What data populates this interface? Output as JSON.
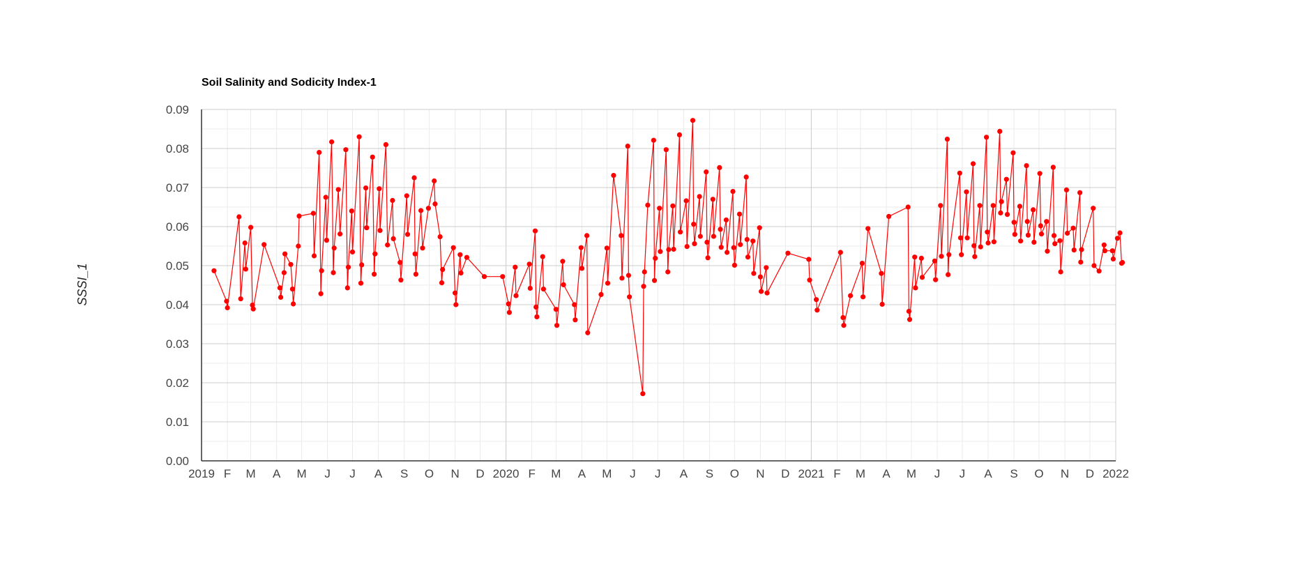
{
  "chart_data": {
    "type": "line",
    "title": "Soil Salinity and Sodicity Index-1",
    "xlabel": "",
    "ylabel": "SSSI_1",
    "ylim": [
      0,
      0.09
    ],
    "xlim": [
      "2019-01-01",
      "2022-01-01"
    ],
    "grid": true,
    "legend": "none",
    "colors": {
      "series": "#ff0000",
      "major_grid": "#cccccc",
      "minor_grid": "#ebebeb",
      "axis": "#333333"
    },
    "y_ticks": [
      "0.00",
      "0.01",
      "0.02",
      "0.03",
      "0.04",
      "0.05",
      "0.06",
      "0.07",
      "0.08",
      "0.09"
    ],
    "x_ticks": [
      {
        "date": "2019-01-01",
        "label": "2019"
      },
      {
        "date": "2019-02-01",
        "label": "F"
      },
      {
        "date": "2019-03-01",
        "label": "M"
      },
      {
        "date": "2019-04-01",
        "label": "A"
      },
      {
        "date": "2019-05-01",
        "label": "M"
      },
      {
        "date": "2019-06-01",
        "label": "J"
      },
      {
        "date": "2019-07-01",
        "label": "J"
      },
      {
        "date": "2019-08-01",
        "label": "A"
      },
      {
        "date": "2019-09-01",
        "label": "S"
      },
      {
        "date": "2019-10-01",
        "label": "O"
      },
      {
        "date": "2019-11-01",
        "label": "N"
      },
      {
        "date": "2019-12-01",
        "label": "D"
      },
      {
        "date": "2020-01-01",
        "label": "2020"
      },
      {
        "date": "2020-02-01",
        "label": "F"
      },
      {
        "date": "2020-03-01",
        "label": "M"
      },
      {
        "date": "2020-04-01",
        "label": "A"
      },
      {
        "date": "2020-05-01",
        "label": "M"
      },
      {
        "date": "2020-06-01",
        "label": "J"
      },
      {
        "date": "2020-07-01",
        "label": "J"
      },
      {
        "date": "2020-08-01",
        "label": "A"
      },
      {
        "date": "2020-09-01",
        "label": "S"
      },
      {
        "date": "2020-10-01",
        "label": "O"
      },
      {
        "date": "2020-11-01",
        "label": "N"
      },
      {
        "date": "2020-12-01",
        "label": "D"
      },
      {
        "date": "2021-01-01",
        "label": "2021"
      },
      {
        "date": "2021-02-01",
        "label": "F"
      },
      {
        "date": "2021-03-01",
        "label": "M"
      },
      {
        "date": "2021-04-01",
        "label": "A"
      },
      {
        "date": "2021-05-01",
        "label": "M"
      },
      {
        "date": "2021-06-01",
        "label": "J"
      },
      {
        "date": "2021-07-01",
        "label": "J"
      },
      {
        "date": "2021-08-01",
        "label": "A"
      },
      {
        "date": "2021-09-01",
        "label": "S"
      },
      {
        "date": "2021-10-01",
        "label": "O"
      },
      {
        "date": "2021-11-01",
        "label": "N"
      },
      {
        "date": "2021-12-01",
        "label": "D"
      },
      {
        "date": "2022-01-01",
        "label": "2022"
      }
    ],
    "series": [
      {
        "points": [
          [
            "2019-01-16",
            0.0487
          ],
          [
            "2019-01-31",
            0.0409
          ],
          [
            "2019-02-01",
            0.0392
          ],
          [
            "2019-02-15",
            0.0625
          ],
          [
            "2019-02-17",
            0.0415
          ],
          [
            "2019-02-22",
            0.0558
          ],
          [
            "2019-02-23",
            0.0491
          ],
          [
            "2019-03-01",
            0.0598
          ],
          [
            "2019-03-03",
            0.0399
          ],
          [
            "2019-03-04",
            0.0389
          ],
          [
            "2019-03-17",
            0.0554
          ],
          [
            "2019-04-05",
            0.0443
          ],
          [
            "2019-04-06",
            0.0419
          ],
          [
            "2019-04-10",
            0.0482
          ],
          [
            "2019-04-11",
            0.053
          ],
          [
            "2019-04-18",
            0.0503
          ],
          [
            "2019-04-20",
            0.044
          ],
          [
            "2019-04-21",
            0.0402
          ],
          [
            "2019-04-27",
            0.055
          ],
          [
            "2019-04-28",
            0.0627
          ],
          [
            "2019-05-15",
            0.0634
          ],
          [
            "2019-05-16",
            0.0525
          ],
          [
            "2019-05-22",
            0.079
          ],
          [
            "2019-05-24",
            0.0428
          ],
          [
            "2019-05-25",
            0.0487
          ],
          [
            "2019-05-30",
            0.0675
          ],
          [
            "2019-05-31",
            0.0565
          ],
          [
            "2019-06-06",
            0.0817
          ],
          [
            "2019-06-08",
            0.0482
          ],
          [
            "2019-06-09",
            0.0545
          ],
          [
            "2019-06-14",
            0.0695
          ],
          [
            "2019-06-16",
            0.0581
          ],
          [
            "2019-06-23",
            0.0797
          ],
          [
            "2019-06-25",
            0.0443
          ],
          [
            "2019-06-26",
            0.0496
          ],
          [
            "2019-06-30",
            0.064
          ],
          [
            "2019-07-01",
            0.0535
          ],
          [
            "2019-07-09",
            0.083
          ],
          [
            "2019-07-11",
            0.0455
          ],
          [
            "2019-07-12",
            0.0502
          ],
          [
            "2019-07-17",
            0.0699
          ],
          [
            "2019-07-18",
            0.0597
          ],
          [
            "2019-07-25",
            0.0778
          ],
          [
            "2019-07-27",
            0.0478
          ],
          [
            "2019-07-28",
            0.053
          ],
          [
            "2019-08-02",
            0.0697
          ],
          [
            "2019-08-03",
            0.059
          ],
          [
            "2019-08-10",
            0.081
          ],
          [
            "2019-08-12",
            0.0553
          ],
          [
            "2019-08-18",
            0.0667
          ],
          [
            "2019-08-19",
            0.0569
          ],
          [
            "2019-08-27",
            0.0508
          ],
          [
            "2019-08-28",
            0.0463
          ],
          [
            "2019-09-04",
            0.0679
          ],
          [
            "2019-09-05",
            0.058
          ],
          [
            "2019-09-13",
            0.0725
          ],
          [
            "2019-09-14",
            0.053
          ],
          [
            "2019-09-15",
            0.0478
          ],
          [
            "2019-09-21",
            0.0641
          ],
          [
            "2019-09-23",
            0.0545
          ],
          [
            "2019-09-30",
            0.0647
          ],
          [
            "2019-10-07",
            0.0717
          ],
          [
            "2019-10-08",
            0.0658
          ],
          [
            "2019-10-14",
            0.0574
          ],
          [
            "2019-10-16",
            0.0456
          ],
          [
            "2019-10-17",
            0.049
          ],
          [
            "2019-10-30",
            0.0546
          ],
          [
            "2019-11-01",
            0.043
          ],
          [
            "2019-11-02",
            0.04
          ],
          [
            "2019-11-07",
            0.0528
          ],
          [
            "2019-11-08",
            0.0481
          ],
          [
            "2019-11-15",
            0.0521
          ],
          [
            "2019-12-06",
            0.0472
          ],
          [
            "2019-12-28",
            0.0472
          ],
          [
            "2020-01-04",
            0.0402
          ],
          [
            "2020-01-05",
            0.038
          ],
          [
            "2020-01-12",
            0.0496
          ],
          [
            "2020-01-13",
            0.0423
          ],
          [
            "2020-01-29",
            0.0504
          ],
          [
            "2020-01-30",
            0.0442
          ],
          [
            "2020-02-05",
            0.0589
          ],
          [
            "2020-02-06",
            0.0394
          ],
          [
            "2020-02-07",
            0.0369
          ],
          [
            "2020-02-14",
            0.0523
          ],
          [
            "2020-02-15",
            0.044
          ],
          [
            "2020-03-01",
            0.0388
          ],
          [
            "2020-03-02",
            0.0347
          ],
          [
            "2020-03-09",
            0.0511
          ],
          [
            "2020-03-10",
            0.0451
          ],
          [
            "2020-03-23",
            0.04
          ],
          [
            "2020-03-24",
            0.0361
          ],
          [
            "2020-03-31",
            0.0546
          ],
          [
            "2020-04-01",
            0.0493
          ],
          [
            "2020-04-07",
            0.0577
          ],
          [
            "2020-04-08",
            0.0328
          ],
          [
            "2020-04-24",
            0.0426
          ],
          [
            "2020-05-01",
            0.0545
          ],
          [
            "2020-05-02",
            0.0455
          ],
          [
            "2020-05-09",
            0.0731
          ],
          [
            "2020-05-18",
            0.0577
          ],
          [
            "2020-05-19",
            0.0468
          ],
          [
            "2020-05-26",
            0.0806
          ],
          [
            "2020-05-27",
            0.0475
          ],
          [
            "2020-05-28",
            0.042
          ],
          [
            "2020-06-13",
            0.0172
          ],
          [
            "2020-06-14",
            0.0447
          ],
          [
            "2020-06-15",
            0.0484
          ],
          [
            "2020-06-19",
            0.0655
          ],
          [
            "2020-06-26",
            0.0821
          ],
          [
            "2020-06-27",
            0.0462
          ],
          [
            "2020-06-28",
            0.0519
          ],
          [
            "2020-07-03",
            0.0647
          ],
          [
            "2020-07-04",
            0.0536
          ],
          [
            "2020-07-11",
            0.0797
          ],
          [
            "2020-07-13",
            0.0484
          ],
          [
            "2020-07-14",
            0.0541
          ],
          [
            "2020-07-19",
            0.0653
          ],
          [
            "2020-07-20",
            0.0542
          ],
          [
            "2020-07-27",
            0.0835
          ],
          [
            "2020-07-28",
            0.0586
          ],
          [
            "2020-08-04",
            0.0666
          ],
          [
            "2020-08-05",
            0.0549
          ],
          [
            "2020-08-12",
            0.0872
          ],
          [
            "2020-08-13",
            0.0606
          ],
          [
            "2020-08-14",
            0.0556
          ],
          [
            "2020-08-20",
            0.0677
          ],
          [
            "2020-08-21",
            0.0575
          ],
          [
            "2020-08-28",
            0.074
          ],
          [
            "2020-08-29",
            0.056
          ],
          [
            "2020-08-30",
            0.052
          ],
          [
            "2020-09-05",
            0.067
          ],
          [
            "2020-09-06",
            0.0575
          ],
          [
            "2020-09-13",
            0.0751
          ],
          [
            "2020-09-14",
            0.0593
          ],
          [
            "2020-09-15",
            0.0547
          ],
          [
            "2020-09-21",
            0.0617
          ],
          [
            "2020-09-22",
            0.0534
          ],
          [
            "2020-09-29",
            0.069
          ],
          [
            "2020-09-30",
            0.0546
          ],
          [
            "2020-10-01",
            0.0501
          ],
          [
            "2020-10-07",
            0.0632
          ],
          [
            "2020-10-08",
            0.0554
          ],
          [
            "2020-10-15",
            0.0727
          ],
          [
            "2020-10-16",
            0.0567
          ],
          [
            "2020-10-17",
            0.0522
          ],
          [
            "2020-10-23",
            0.0563
          ],
          [
            "2020-10-24",
            0.048
          ],
          [
            "2020-10-31",
            0.0597
          ],
          [
            "2020-11-01",
            0.0471
          ],
          [
            "2020-11-02",
            0.0434
          ],
          [
            "2020-11-08",
            0.0495
          ],
          [
            "2020-11-09",
            0.043
          ],
          [
            "2020-12-04",
            0.0532
          ],
          [
            "2020-12-29",
            0.0516
          ],
          [
            "2020-12-30",
            0.0463
          ],
          [
            "2021-01-07",
            0.0413
          ],
          [
            "2021-01-08",
            0.0386
          ],
          [
            "2021-02-05",
            0.0534
          ],
          [
            "2021-02-08",
            0.0367
          ],
          [
            "2021-02-09",
            0.0347
          ],
          [
            "2021-02-17",
            0.0423
          ],
          [
            "2021-03-03",
            0.0506
          ],
          [
            "2021-03-04",
            0.042
          ],
          [
            "2021-03-10",
            0.0595
          ],
          [
            "2021-03-26",
            0.048
          ],
          [
            "2021-03-27",
            0.0401
          ],
          [
            "2021-04-04",
            0.0626
          ],
          [
            "2021-04-27",
            0.065
          ],
          [
            "2021-04-28",
            0.0383
          ],
          [
            "2021-04-29",
            0.0362
          ],
          [
            "2021-05-05",
            0.0522
          ],
          [
            "2021-05-06",
            0.0443
          ],
          [
            "2021-05-13",
            0.0519
          ],
          [
            "2021-05-14",
            0.047
          ],
          [
            "2021-05-29",
            0.0512
          ],
          [
            "2021-05-30",
            0.0464
          ],
          [
            "2021-06-05",
            0.0654
          ],
          [
            "2021-06-06",
            0.0524
          ],
          [
            "2021-06-13",
            0.0824
          ],
          [
            "2021-06-14",
            0.0477
          ],
          [
            "2021-06-15",
            0.0528
          ],
          [
            "2021-06-28",
            0.0737
          ],
          [
            "2021-06-29",
            0.0571
          ],
          [
            "2021-06-30",
            0.0528
          ],
          [
            "2021-07-06",
            0.0689
          ],
          [
            "2021-07-07",
            0.0571
          ],
          [
            "2021-07-14",
            0.0761
          ],
          [
            "2021-07-15",
            0.0551
          ],
          [
            "2021-07-16",
            0.0523
          ],
          [
            "2021-07-22",
            0.0654
          ],
          [
            "2021-07-23",
            0.0548
          ],
          [
            "2021-07-30",
            0.0829
          ],
          [
            "2021-07-31",
            0.0586
          ],
          [
            "2021-08-01",
            0.0558
          ],
          [
            "2021-08-07",
            0.0654
          ],
          [
            "2021-08-08",
            0.0561
          ],
          [
            "2021-08-15",
            0.0844
          ],
          [
            "2021-08-16",
            0.0635
          ],
          [
            "2021-08-17",
            0.0664
          ],
          [
            "2021-08-23",
            0.0721
          ],
          [
            "2021-08-24",
            0.0631
          ],
          [
            "2021-08-31",
            0.0789
          ],
          [
            "2021-09-01",
            0.0611
          ],
          [
            "2021-09-02",
            0.058
          ],
          [
            "2021-09-08",
            0.0652
          ],
          [
            "2021-09-09",
            0.0563
          ],
          [
            "2021-09-16",
            0.0756
          ],
          [
            "2021-09-17",
            0.0613
          ],
          [
            "2021-09-18",
            0.0578
          ],
          [
            "2021-09-24",
            0.0643
          ],
          [
            "2021-09-25",
            0.056
          ],
          [
            "2021-10-02",
            0.0736
          ],
          [
            "2021-10-03",
            0.0602
          ],
          [
            "2021-10-04",
            0.0581
          ],
          [
            "2021-10-10",
            0.0613
          ],
          [
            "2021-10-11",
            0.0537
          ],
          [
            "2021-10-18",
            0.0752
          ],
          [
            "2021-10-19",
            0.0577
          ],
          [
            "2021-10-20",
            0.0556
          ],
          [
            "2021-10-26",
            0.0564
          ],
          [
            "2021-10-27",
            0.0484
          ],
          [
            "2021-11-03",
            0.0694
          ],
          [
            "2021-11-04",
            0.0583
          ],
          [
            "2021-11-11",
            0.0596
          ],
          [
            "2021-11-12",
            0.054
          ],
          [
            "2021-11-19",
            0.0687
          ],
          [
            "2021-11-20",
            0.0509
          ],
          [
            "2021-11-21",
            0.0541
          ],
          [
            "2021-12-05",
            0.0647
          ],
          [
            "2021-12-06",
            0.05
          ],
          [
            "2021-12-12",
            0.0486
          ],
          [
            "2021-12-18",
            0.0553
          ],
          [
            "2021-12-19",
            0.0538
          ],
          [
            "2021-12-28",
            0.0538
          ],
          [
            "2021-12-29",
            0.0517
          ],
          [
            "2022-01-03",
            0.057
          ],
          [
            "2022-01-06",
            0.0584
          ],
          [
            "2022-01-08",
            0.0506
          ],
          [
            "2022-01-09",
            0.0508
          ]
        ]
      }
    ]
  }
}
